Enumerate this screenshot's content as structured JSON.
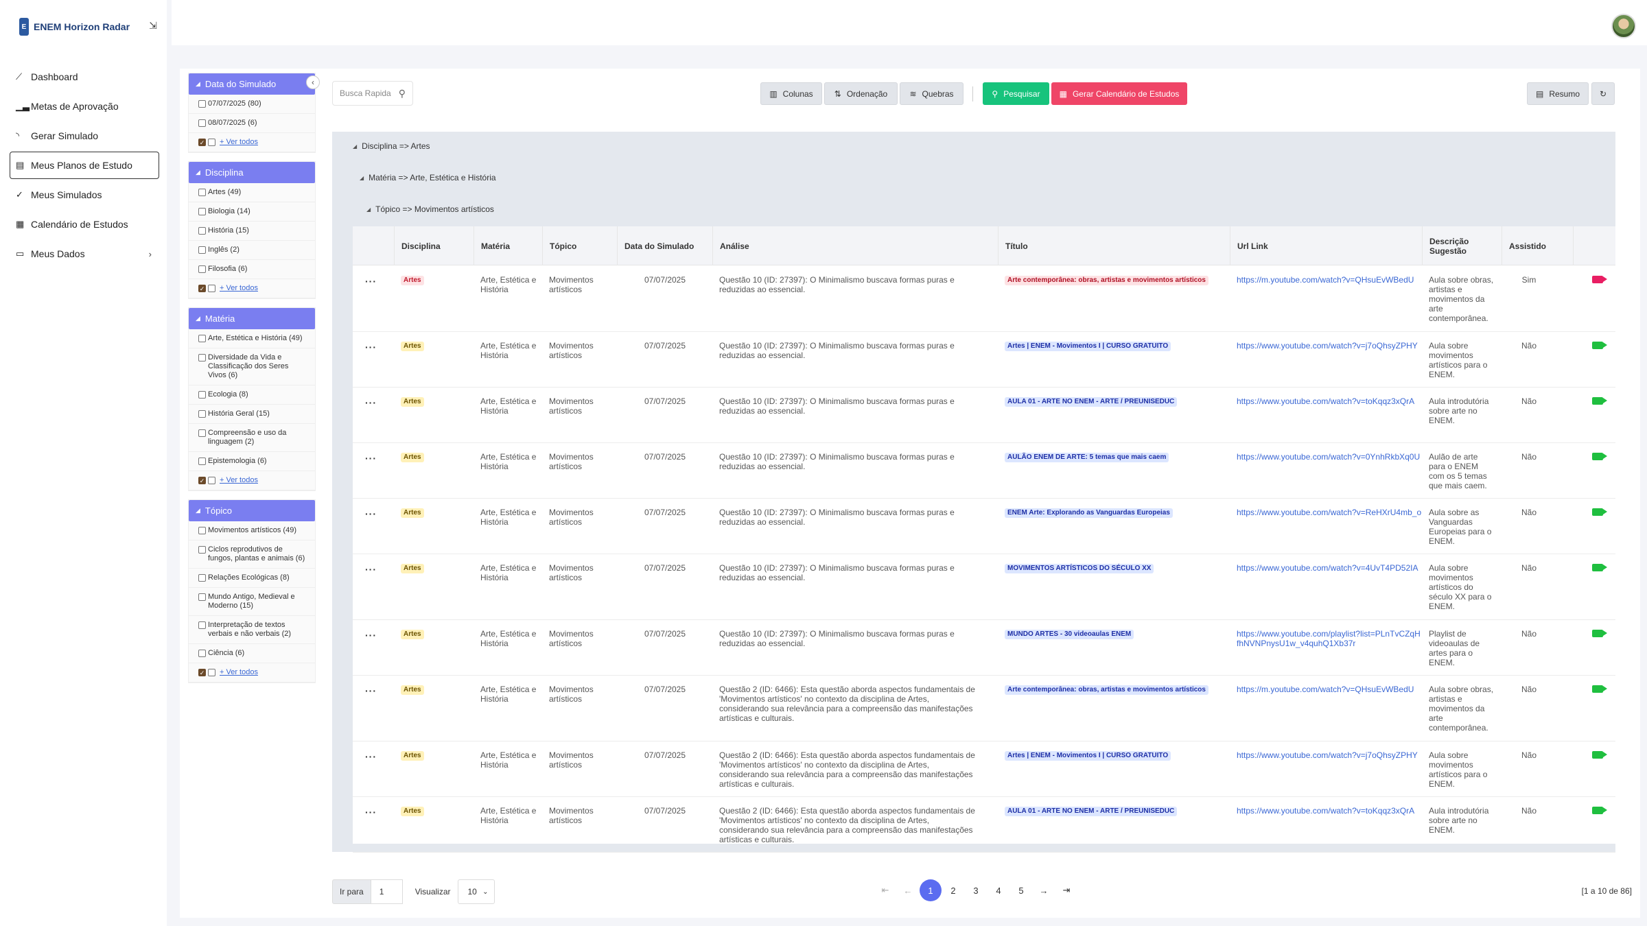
{
  "app": {
    "name": "ENEM Horizon Radar",
    "logo_letter": "E"
  },
  "nav": {
    "items": [
      {
        "label": "Dashboard",
        "icon": "line-chart-icon"
      },
      {
        "label": "Metas de Aprovação",
        "icon": "bar-chart-icon"
      },
      {
        "label": "Gerar Simulado",
        "icon": "rss-icon"
      },
      {
        "label": "Meus Planos de Estudo",
        "icon": "plan-icon",
        "active": true
      },
      {
        "label": "Meus Simulados",
        "icon": "check-icon"
      },
      {
        "label": "Calendário de Estudos",
        "icon": "calendar-icon"
      },
      {
        "label": "Meus Dados",
        "icon": "id-card-icon",
        "has_chevron": true
      }
    ]
  },
  "filters": {
    "ver_todos": "+ Ver todos",
    "groups": [
      {
        "title": "Data do Simulado",
        "items": [
          "07/07/2025  (80)",
          "08/07/2025  (6)"
        ]
      },
      {
        "title": "Disciplina",
        "items": [
          "Artes  (49)",
          "Biologia  (14)",
          "História  (15)",
          "Inglês  (2)",
          "Filosofia  (6)"
        ]
      },
      {
        "title": "Matéria",
        "items": [
          "Arte, Estética e História (49)",
          "Diversidade da Vida e Classificação dos Seres Vivos (6)",
          "Ecologia  (8)",
          "História Geral  (15)",
          "Compreensão e uso da linguagem  (2)",
          "Epistemologia  (6)"
        ]
      },
      {
        "title": "Tópico",
        "items": [
          "Movimentos artísticos  (49)",
          "Ciclos reprodutivos de fungos, plantas e animais  (6)",
          "Relações Ecológicas  (8)",
          "Mundo Antigo, Medieval e Moderno  (15)",
          "Interpretação de textos verbais e não verbais  (2)",
          "Ciência  (6)"
        ]
      }
    ]
  },
  "toolbar": {
    "search_placeholder": "Busca Rapida",
    "colunas": "Colunas",
    "ordenacao": "Ordenação",
    "quebras": "Quebras",
    "pesquisar": "Pesquisar",
    "gerar": "Gerar Calendário de Estudos",
    "resumo": "Resumo"
  },
  "groups": {
    "g1": "Disciplina => Artes",
    "g2": "Matéria => Arte, Estética e História",
    "g3": "Tópico => Movimentos artísticos"
  },
  "columns": [
    "Disciplina",
    "Matéria",
    "Tópico",
    "Data do Simulado",
    "Análise",
    "Título",
    "Url Link",
    "Descrição Sugestão",
    "Assistido"
  ],
  "rows": [
    {
      "disciplina": "Artes",
      "materia": "Arte, Estética e História",
      "topico": "Movimentos artísticos",
      "data": "07/07/2025",
      "analise": "Questão 10 (ID: 27397): O Minimalismo buscava formas puras e reduzidas ao essencial.",
      "titulo": "Arte contemporânea: obras, artistas e movimentos artísticos",
      "url": "https://m.youtube.com/watch?v=QHsuEvWBedU",
      "descricao": "Aula sobre obras, artistas e movimentos da arte contemporânea.",
      "assistido": "Sim",
      "badge_color": "red",
      "title_color": "title-red",
      "cam": "pink"
    },
    {
      "disciplina": "Artes",
      "materia": "Arte, Estética e História",
      "topico": "Movimentos artísticos",
      "data": "07/07/2025",
      "analise": "Questão 10 (ID: 27397): O Minimalismo buscava formas puras e reduzidas ao essencial.",
      "titulo": "Artes | ENEM - Movimentos I | CURSO GRATUITO",
      "url": "https://www.youtube.com/watch?v=j7oQhsyZPHY",
      "descricao": "Aula sobre movimentos artísticos para o ENEM.",
      "assistido": "Não",
      "badge_color": "yellow",
      "title_color": "title-blue",
      "cam": "green"
    },
    {
      "disciplina": "Artes",
      "materia": "Arte, Estética e História",
      "topico": "Movimentos artísticos",
      "data": "07/07/2025",
      "analise": "Questão 10 (ID: 27397): O Minimalismo buscava formas puras e reduzidas ao essencial.",
      "titulo": "AULA 01 - ARTE NO ENEM - ARTE / PREUNISEDUC",
      "url": "https://www.youtube.com/watch?v=toKqqz3xQrA",
      "descricao": "Aula introdutória sobre arte no ENEM.",
      "assistido": "Não",
      "badge_color": "yellow",
      "title_color": "title-blue",
      "cam": "green"
    },
    {
      "disciplina": "Artes",
      "materia": "Arte, Estética e História",
      "topico": "Movimentos artísticos",
      "data": "07/07/2025",
      "analise": "Questão 10 (ID: 27397): O Minimalismo buscava formas puras e reduzidas ao essencial.",
      "titulo": "AULÃO ENEM DE ARTE: 5 temas que mais caem",
      "url": "https://www.youtube.com/watch?v=0YnhRkbXq0U",
      "descricao": "Aulão de arte para o ENEM com os 5 temas que mais caem.",
      "assistido": "Não",
      "badge_color": "yellow",
      "title_color": "title-blue",
      "cam": "green"
    },
    {
      "disciplina": "Artes",
      "materia": "Arte, Estética e História",
      "topico": "Movimentos artísticos",
      "data": "07/07/2025",
      "analise": "Questão 10 (ID: 27397): O Minimalismo buscava formas puras e reduzidas ao essencial.",
      "titulo": "ENEM Arte: Explorando as Vanguardas Europeias",
      "url": "https://www.youtube.com/watch?v=ReHXrU4mb_o",
      "descricao": "Aula sobre as Vanguardas Europeias para o ENEM.",
      "assistido": "Não",
      "badge_color": "yellow",
      "title_color": "title-blue",
      "cam": "green"
    },
    {
      "disciplina": "Artes",
      "materia": "Arte, Estética e História",
      "topico": "Movimentos artísticos",
      "data": "07/07/2025",
      "analise": "Questão 10 (ID: 27397): O Minimalismo buscava formas puras e reduzidas ao essencial.",
      "titulo": "MOVIMENTOS ARTÍSTICOS DO SÉCULO XX",
      "url": "https://www.youtube.com/watch?v=4UvT4PD52IA",
      "descricao": "Aula sobre movimentos artísticos do século XX para o ENEM.",
      "assistido": "Não",
      "badge_color": "yellow",
      "title_color": "title-blue",
      "cam": "green"
    },
    {
      "disciplina": "Artes",
      "materia": "Arte, Estética e História",
      "topico": "Movimentos artísticos",
      "data": "07/07/2025",
      "analise": "Questão 10 (ID: 27397): O Minimalismo buscava formas puras e reduzidas ao essencial.",
      "titulo": "MUNDO ARTES - 30 videoaulas ENEM",
      "url": "https://www.youtube.com/playlist?list=PLnTvCZqHfhNVNPnysU1w_v4quhQ1Xb37r",
      "descricao": "Playlist de videoaulas de artes para o ENEM.",
      "assistido": "Não",
      "badge_color": "yellow",
      "title_color": "title-blue",
      "cam": "green"
    },
    {
      "disciplina": "Artes",
      "materia": "Arte, Estética e História",
      "topico": "Movimentos artísticos",
      "data": "07/07/2025",
      "analise": "Questão 2 (ID: 6466): Esta questão aborda aspectos fundamentais de 'Movimentos artísticos' no contexto da disciplina de Artes, considerando sua relevância para a compreensão das manifestações artísticas e culturais.",
      "titulo": "Arte contemporânea: obras, artistas e movimentos artísticos",
      "url": "https://m.youtube.com/watch?v=QHsuEvWBedU",
      "descricao": "Aula sobre obras, artistas e movimentos da arte contemporânea.",
      "assistido": "Não",
      "badge_color": "yellow",
      "title_color": "title-blue",
      "cam": "green"
    },
    {
      "disciplina": "Artes",
      "materia": "Arte, Estética e História",
      "topico": "Movimentos artísticos",
      "data": "07/07/2025",
      "analise": "Questão 2 (ID: 6466): Esta questão aborda aspectos fundamentais de 'Movimentos artísticos' no contexto da disciplina de Artes, considerando sua relevância para a compreensão das manifestações artísticas e culturais.",
      "titulo": "Artes | ENEM - Movimentos I | CURSO GRATUITO",
      "url": "https://www.youtube.com/watch?v=j7oQhsyZPHY",
      "descricao": "Aula sobre movimentos artísticos para o ENEM.",
      "assistido": "Não",
      "badge_color": "yellow",
      "title_color": "title-blue",
      "cam": "green"
    },
    {
      "disciplina": "Artes",
      "materia": "Arte, Estética e História",
      "topico": "Movimentos artísticos",
      "data": "07/07/2025",
      "analise": "Questão 2 (ID: 6466): Esta questão aborda aspectos fundamentais de 'Movimentos artísticos' no contexto da disciplina de Artes, considerando sua relevância para a compreensão das manifestações artísticas e culturais.",
      "titulo": "AULA 01 - ARTE NO ENEM - ARTE / PREUNISEDUC",
      "url": "https://www.youtube.com/watch?v=toKqqz3xQrA",
      "descricao": "Aula introdutória sobre arte no ENEM.",
      "assistido": "Não",
      "badge_color": "yellow",
      "title_color": "title-blue",
      "cam": "green"
    }
  ],
  "pager": {
    "ir_para": "Ir para",
    "page_value": "1",
    "visualizar": "Visualizar",
    "page_size": "10",
    "pages": [
      "1",
      "2",
      "3",
      "4",
      "5"
    ],
    "current": "1",
    "count": "[1 a 10 de 86]"
  },
  "colors": {
    "accent": "#7a7ef0",
    "pesquisar": "#17c37c",
    "gerar": "#ef4567",
    "active_page": "#5b6cf0"
  }
}
